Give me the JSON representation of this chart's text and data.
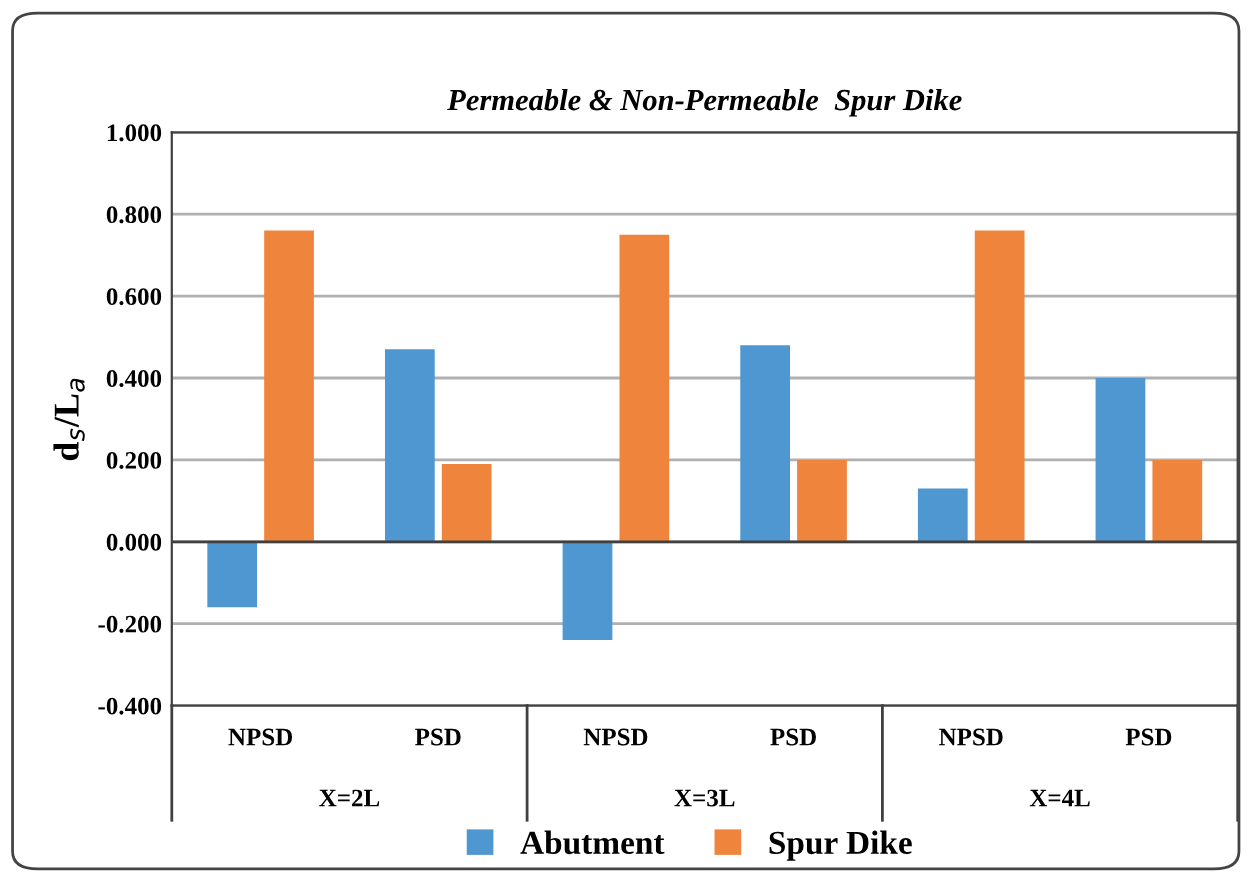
{
  "chart_data": {
    "type": "bar",
    "title": "Permeable & Non-Permeable  Spur Dike",
    "ylabel": "d$_{s}$/L$_{a}$",
    "categories": [
      "NPSD",
      "PSD",
      "NPSD",
      "PSD",
      "NPSD",
      "PSD"
    ],
    "annotations": [
      "X=2L",
      "X=3L",
      "X=4L"
    ],
    "series": [
      {
        "name": "Abutment",
        "color": "#4e97d1",
        "values": [
          -0.16,
          0.47,
          -0.24,
          0.48,
          0.13,
          0.4
        ]
      },
      {
        "name": "Spur Dike",
        "color": "#ef843c",
        "values": [
          0.76,
          0.19,
          0.75,
          0.2,
          0.76,
          0.2
        ]
      }
    ],
    "ylim": [
      -0.4,
      1.0
    ],
    "yticks": [
      {
        "value": -0.4,
        "label": "-0.400"
      },
      {
        "value": -0.2,
        "label": "-0.200"
      },
      {
        "value": 0,
        "label": "0.000"
      },
      {
        "value": 0.2,
        "label": "0.200"
      },
      {
        "value": 0.4,
        "label": "0.400"
      },
      {
        "value": 0.6,
        "label": "0.600"
      },
      {
        "value": 0.8,
        "label": "0.800"
      },
      {
        "value": 1.0,
        "label": "1.000"
      }
    ],
    "grid": "y",
    "legend": "bottom"
  }
}
